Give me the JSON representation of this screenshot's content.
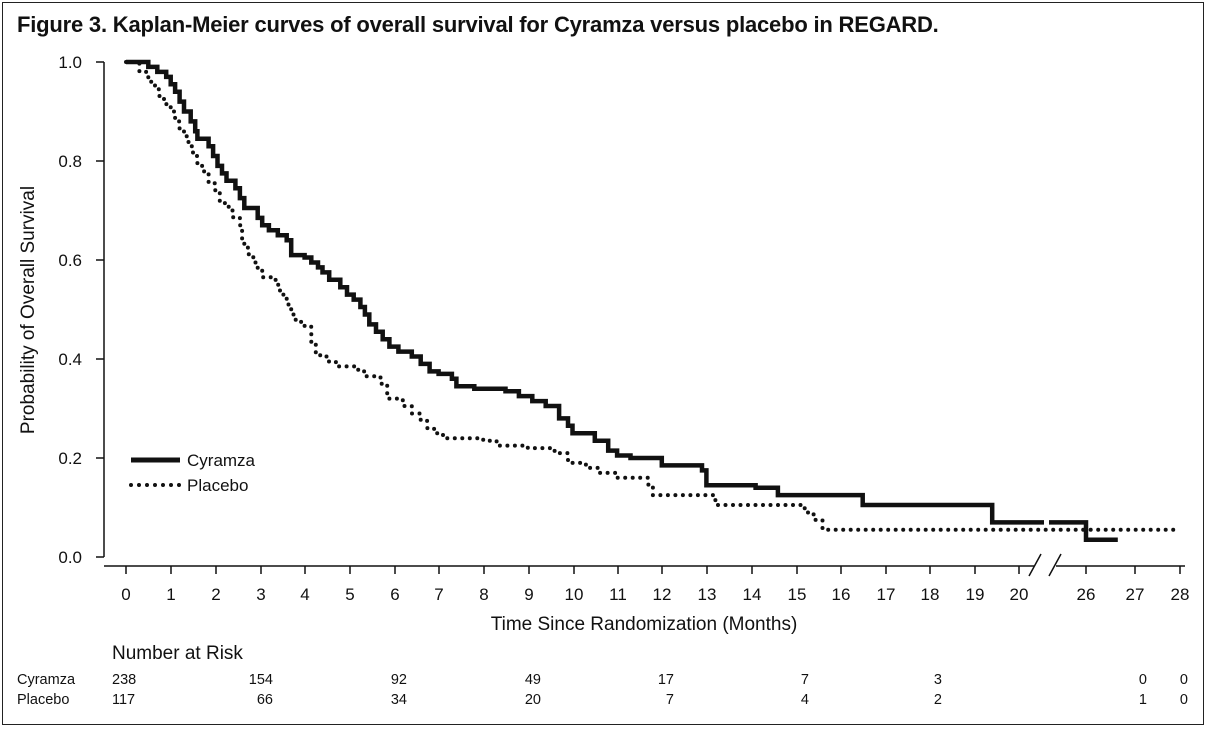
{
  "title": "Figure 3. Kaplan-Meier curves of overall survival for Cyramza versus placebo in REGARD.",
  "chart_data": {
    "type": "line",
    "xlabel": "Time Since Randomization (Months)",
    "ylabel": "Probability of Overall Survival",
    "ylim": [
      0,
      1
    ],
    "yticks": [
      "0.0",
      "0.2",
      "0.4",
      "0.6",
      "0.8",
      "1.0"
    ],
    "xticks": [
      "0",
      "1",
      "2",
      "3",
      "4",
      "5",
      "6",
      "7",
      "8",
      "9",
      "10",
      "11",
      "12",
      "13",
      "14",
      "15",
      "16",
      "17",
      "18",
      "19",
      "20",
      "26",
      "27",
      "28"
    ],
    "axis_break": "between 20 and 26",
    "grid": false,
    "legend_position": "bottom-left",
    "series": [
      {
        "name": "Cyramza",
        "style": "solid",
        "color": "#111111",
        "points": [
          [
            0,
            1.0
          ],
          [
            0.5,
            0.99
          ],
          [
            0.7,
            0.98
          ],
          [
            0.9,
            0.97
          ],
          [
            1.0,
            0.955
          ],
          [
            1.1,
            0.94
          ],
          [
            1.2,
            0.92
          ],
          [
            1.3,
            0.9
          ],
          [
            1.45,
            0.88
          ],
          [
            1.55,
            0.86
          ],
          [
            1.6,
            0.845
          ],
          [
            1.85,
            0.83
          ],
          [
            1.95,
            0.81
          ],
          [
            2.05,
            0.79
          ],
          [
            2.15,
            0.775
          ],
          [
            2.25,
            0.76
          ],
          [
            2.45,
            0.745
          ],
          [
            2.55,
            0.725
          ],
          [
            2.65,
            0.705
          ],
          [
            2.95,
            0.685
          ],
          [
            3.05,
            0.67
          ],
          [
            3.2,
            0.66
          ],
          [
            3.4,
            0.65
          ],
          [
            3.6,
            0.64
          ],
          [
            3.7,
            0.61
          ],
          [
            4.0,
            0.605
          ],
          [
            4.15,
            0.595
          ],
          [
            4.3,
            0.585
          ],
          [
            4.4,
            0.575
          ],
          [
            4.55,
            0.56
          ],
          [
            4.8,
            0.545
          ],
          [
            4.95,
            0.53
          ],
          [
            5.1,
            0.52
          ],
          [
            5.25,
            0.505
          ],
          [
            5.35,
            0.49
          ],
          [
            5.45,
            0.47
          ],
          [
            5.6,
            0.455
          ],
          [
            5.75,
            0.44
          ],
          [
            5.9,
            0.425
          ],
          [
            6.1,
            0.415
          ],
          [
            6.4,
            0.405
          ],
          [
            6.6,
            0.39
          ],
          [
            6.8,
            0.375
          ],
          [
            7.0,
            0.37
          ],
          [
            7.3,
            0.36
          ],
          [
            7.4,
            0.345
          ],
          [
            7.8,
            0.34
          ],
          [
            8.5,
            0.335
          ],
          [
            8.8,
            0.325
          ],
          [
            9.1,
            0.315
          ],
          [
            9.4,
            0.305
          ],
          [
            9.7,
            0.28
          ],
          [
            9.9,
            0.265
          ],
          [
            10.0,
            0.25
          ],
          [
            10.5,
            0.235
          ],
          [
            10.8,
            0.215
          ],
          [
            11.0,
            0.205
          ],
          [
            11.3,
            0.2
          ],
          [
            12.0,
            0.185
          ],
          [
            12.9,
            0.175
          ],
          [
            13.0,
            0.145
          ],
          [
            14.1,
            0.14
          ],
          [
            14.6,
            0.125
          ],
          [
            16.5,
            0.105
          ],
          [
            19.4,
            0.07
          ],
          [
            20.6,
            0.07
          ],
          [
            26.0,
            0.035
          ],
          [
            26.65,
            0.035
          ]
        ]
      },
      {
        "name": "Placebo",
        "style": "dotted",
        "color": "#111111",
        "points": [
          [
            0,
            1.0
          ],
          [
            0.3,
            0.98
          ],
          [
            0.5,
            0.96
          ],
          [
            0.65,
            0.945
          ],
          [
            0.75,
            0.93
          ],
          [
            0.85,
            0.915
          ],
          [
            1.0,
            0.9
          ],
          [
            1.1,
            0.88
          ],
          [
            1.2,
            0.865
          ],
          [
            1.3,
            0.85
          ],
          [
            1.4,
            0.83
          ],
          [
            1.5,
            0.81
          ],
          [
            1.6,
            0.79
          ],
          [
            1.75,
            0.775
          ],
          [
            1.85,
            0.755
          ],
          [
            2.0,
            0.735
          ],
          [
            2.1,
            0.715
          ],
          [
            2.3,
            0.7
          ],
          [
            2.4,
            0.685
          ],
          [
            2.55,
            0.67
          ],
          [
            2.6,
            0.64
          ],
          [
            2.65,
            0.625
          ],
          [
            2.75,
            0.61
          ],
          [
            2.85,
            0.595
          ],
          [
            2.95,
            0.58
          ],
          [
            3.05,
            0.565
          ],
          [
            3.35,
            0.55
          ],
          [
            3.45,
            0.53
          ],
          [
            3.6,
            0.51
          ],
          [
            3.7,
            0.49
          ],
          [
            3.8,
            0.475
          ],
          [
            4.0,
            0.465
          ],
          [
            4.15,
            0.43
          ],
          [
            4.25,
            0.41
          ],
          [
            4.35,
            0.405
          ],
          [
            4.5,
            0.395
          ],
          [
            4.7,
            0.385
          ],
          [
            5.2,
            0.375
          ],
          [
            5.35,
            0.365
          ],
          [
            5.7,
            0.35
          ],
          [
            5.85,
            0.32
          ],
          [
            6.2,
            0.305
          ],
          [
            6.4,
            0.29
          ],
          [
            6.6,
            0.275
          ],
          [
            6.75,
            0.26
          ],
          [
            6.9,
            0.25
          ],
          [
            7.1,
            0.24
          ],
          [
            8.0,
            0.235
          ],
          [
            8.3,
            0.225
          ],
          [
            9.0,
            0.22
          ],
          [
            9.6,
            0.21
          ],
          [
            9.9,
            0.19
          ],
          [
            10.3,
            0.18
          ],
          [
            10.6,
            0.17
          ],
          [
            11.0,
            0.16
          ],
          [
            11.7,
            0.145
          ],
          [
            11.8,
            0.125
          ],
          [
            13.2,
            0.105
          ],
          [
            15.2,
            0.09
          ],
          [
            15.4,
            0.075
          ],
          [
            15.6,
            0.055
          ],
          [
            28,
            0.055
          ]
        ]
      }
    ],
    "risk_table": {
      "header": "Number at Risk",
      "rows": [
        {
          "label": "Cyramza",
          "values": [
            "238",
            "154",
            "92",
            "49",
            "17",
            "7",
            "3",
            "0",
            "0"
          ]
        },
        {
          "label": "Placebo",
          "values": [
            "117",
            "66",
            "34",
            "20",
            "7",
            "4",
            "2",
            "1",
            "0"
          ]
        }
      ],
      "at_months": [
        0,
        3,
        6,
        9,
        12,
        15,
        18,
        27,
        28
      ]
    }
  }
}
